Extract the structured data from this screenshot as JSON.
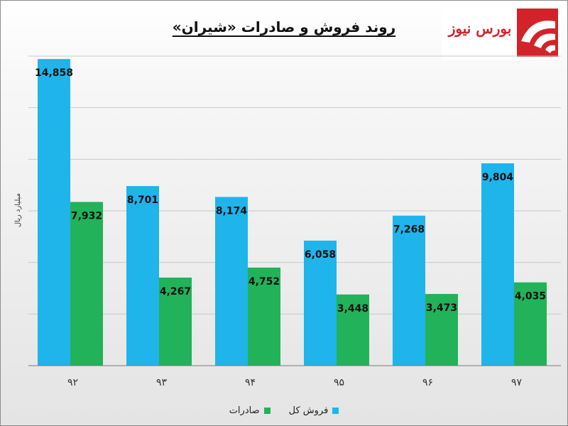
{
  "chart_data": {
    "type": "bar",
    "title": "روند فروش و صادرات «شیران»",
    "ylabel": "میلیارد ریال",
    "xlabel": "",
    "categories": [
      "۹۲",
      "۹۳",
      "۹۴",
      "۹۵",
      "۹۶",
      "۹۷"
    ],
    "series": [
      {
        "name": "فروش کل",
        "color": "#1fb4ea",
        "values": [
          14858,
          8701,
          8174,
          6058,
          7268,
          9804
        ]
      },
      {
        "name": "صادرات",
        "color": "#21b25a",
        "values": [
          7932,
          4267,
          4752,
          3448,
          3473,
          4035
        ]
      }
    ],
    "data_labels": [
      [
        "14,858",
        "8,701",
        "8,174",
        "6,058",
        "7,268",
        "9,804"
      ],
      [
        "7,932",
        "4,267",
        "4,752",
        "3,448",
        "3,473",
        "4,035"
      ]
    ],
    "ylim": [
      0,
      15000
    ],
    "grid": true,
    "legend_position": "bottom"
  },
  "logo": {
    "text": "بورس نیوز",
    "accent_color": "#d2232a"
  }
}
